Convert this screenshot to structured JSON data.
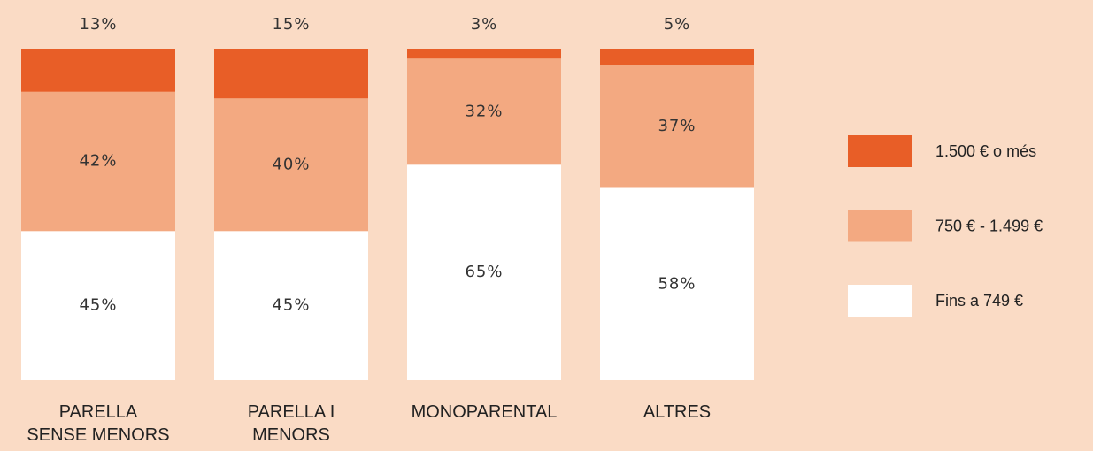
{
  "chart_data": {
    "type": "stacked_bar",
    "categories": [
      [
        "PARELLA",
        "SENSE MENORS"
      ],
      [
        "PARELLA I",
        "MENORS"
      ],
      [
        "MONOPARENTAL"
      ],
      [
        "ALTRES"
      ]
    ],
    "series": [
      {
        "name": "1.500 € o més",
        "color": "#e85e27",
        "values": [
          13,
          15,
          3,
          5
        ],
        "value_labels": [
          "13%",
          "15%",
          "3%",
          "5%"
        ]
      },
      {
        "name": "750 € - 1.499 €",
        "color": "#f3a981",
        "values": [
          42,
          40,
          32,
          37
        ],
        "value_labels": [
          "42%",
          "40%",
          "32%",
          "37%"
        ]
      },
      {
        "name": "Fins a 749 €",
        "color": "#ffffff",
        "values": [
          45,
          45,
          65,
          58
        ],
        "value_labels": [
          "45%",
          "45%",
          "65%",
          "58%"
        ]
      }
    ],
    "ylim": [
      0,
      100
    ],
    "legend": "right"
  }
}
